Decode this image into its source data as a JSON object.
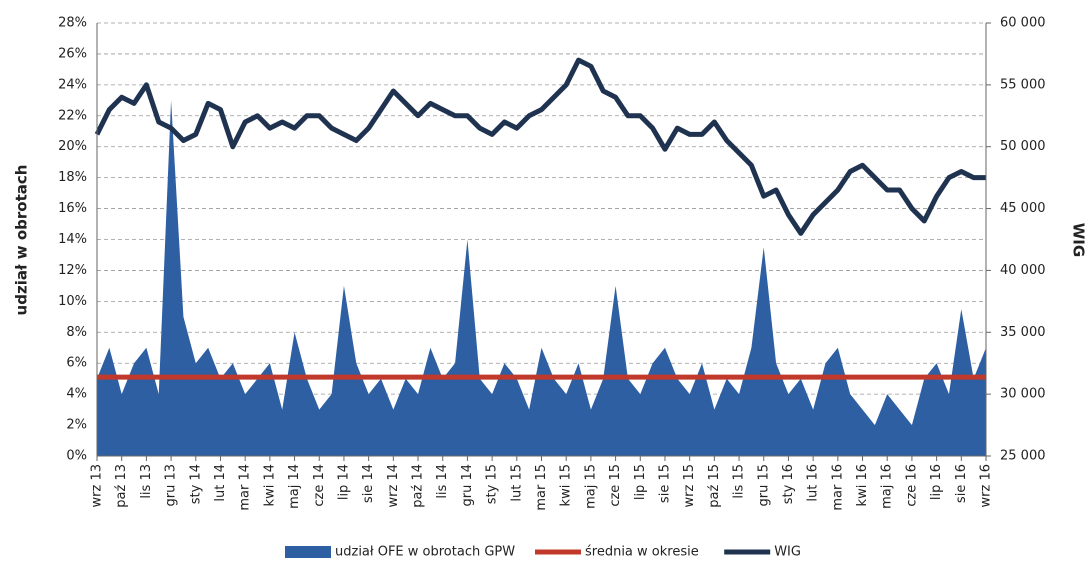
{
  "chart_data": {
    "type": "area-line-combo",
    "y_label": "udział w obrotach",
    "y2_label": "WIG",
    "categories": [
      "wrz 13",
      null,
      "paź 13",
      null,
      "lis 13",
      null,
      "gru 13",
      null,
      "sty 14",
      null,
      "lut 14",
      null,
      "mar 14",
      null,
      "kwi 14",
      null,
      "maj 14",
      null,
      "cze 14",
      null,
      "lip 14",
      null,
      "sie 14",
      null,
      "wrz 14",
      null,
      "paź 14",
      null,
      "lis 14",
      null,
      "gru 14",
      null,
      "sty 15",
      null,
      "lut 15",
      null,
      "mar 15",
      null,
      "kwi 15",
      null,
      "maj 15",
      null,
      "cze 15",
      null,
      "lip 15",
      null,
      "sie 15",
      null,
      "wrz 15",
      null,
      "paź 15",
      null,
      "lis 15",
      null,
      "gru 15",
      null,
      "sty 16",
      null,
      "lut 16",
      null,
      "mar 16",
      null,
      "kwi 16",
      null,
      "maj 16",
      null,
      "cze 16",
      null,
      "lip 16",
      null,
      "sie 16",
      null,
      "wrz 16"
    ],
    "series": [
      {
        "name": "udział OFE w obrotach GPW",
        "kind": "area",
        "color": "#2e5fa3",
        "values": [
          5,
          7,
          4,
          6,
          7,
          4,
          23,
          9,
          6,
          7,
          5,
          6,
          4,
          5,
          6,
          3,
          8,
          5,
          3,
          4,
          11,
          6,
          4,
          5,
          3,
          5,
          4,
          7,
          5,
          6,
          14,
          5,
          4,
          6,
          5,
          3,
          7,
          5,
          4,
          6,
          3,
          5,
          11,
          5,
          4,
          6,
          7,
          5,
          4,
          6,
          3,
          5,
          4,
          7,
          13.5,
          6,
          4,
          5,
          3,
          6,
          7,
          4,
          3,
          2,
          4,
          3,
          2,
          5,
          6,
          4,
          9.5,
          5,
          7
        ]
      },
      {
        "name": "średnia w okresie",
        "kind": "hline",
        "color": "#c0392b",
        "value": 5.1
      },
      {
        "name": "WIG",
        "kind": "line",
        "axis": "y2",
        "color": "#1f3350",
        "values": [
          51000,
          53000,
          54000,
          53500,
          55000,
          52000,
          51500,
          50500,
          51000,
          53500,
          53000,
          50000,
          52000,
          52500,
          51500,
          52000,
          51500,
          52500,
          52500,
          51500,
          51000,
          50500,
          51500,
          53000,
          54500,
          53500,
          52500,
          53500,
          53000,
          52500,
          52500,
          51500,
          51000,
          52000,
          51500,
          52500,
          53000,
          54000,
          55000,
          57000,
          56500,
          54500,
          54000,
          52500,
          52500,
          51500,
          49800,
          51500,
          51000,
          51000,
          52000,
          50500,
          49500,
          48500,
          46000,
          46500,
          44500,
          43000,
          44500,
          45500,
          46500,
          48000,
          48500,
          47500,
          46500,
          46500,
          45000,
          44000,
          46000,
          47500,
          48000,
          47500,
          47500
        ]
      }
    ],
    "ylim": [
      0,
      28
    ],
    "yticks": [
      {
        "value": 0,
        "label": "0%"
      },
      {
        "value": 2,
        "label": "2%"
      },
      {
        "value": 4,
        "label": "4%"
      },
      {
        "value": 6,
        "label": "6%"
      },
      {
        "value": 8,
        "label": "8%"
      },
      {
        "value": 10,
        "label": "10%"
      },
      {
        "value": 12,
        "label": "12%"
      },
      {
        "value": 14,
        "label": "14%"
      },
      {
        "value": 16,
        "label": "16%"
      },
      {
        "value": 18,
        "label": "18%"
      },
      {
        "value": 20,
        "label": "20%"
      },
      {
        "value": 22,
        "label": "22%"
      },
      {
        "value": 24,
        "label": "24%"
      },
      {
        "value": 26,
        "label": "26%"
      },
      {
        "value": 28,
        "label": "28%"
      }
    ],
    "y2lim": [
      25000,
      60000
    ],
    "y2ticks": [
      {
        "value": 25000,
        "label": "25 000"
      },
      {
        "value": 30000,
        "label": "30 000"
      },
      {
        "value": 35000,
        "label": "35 000"
      },
      {
        "value": 40000,
        "label": "40 000"
      },
      {
        "value": 45000,
        "label": "45 000"
      },
      {
        "value": 50000,
        "label": "50 000"
      },
      {
        "value": 55000,
        "label": "55 000"
      },
      {
        "value": 60000,
        "label": "60 000"
      }
    ],
    "grid": true,
    "legend": "bottom"
  }
}
